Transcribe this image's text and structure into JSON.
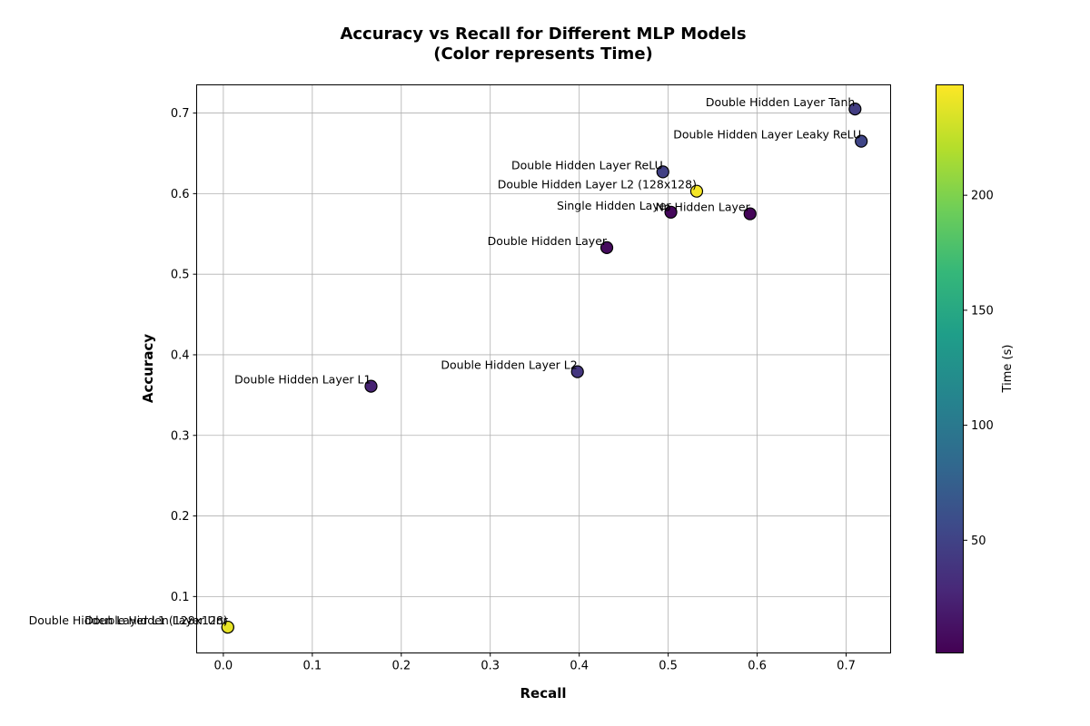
{
  "chart_data": {
    "type": "scatter",
    "title_line1": "Accuracy vs Recall for Different MLP Models",
    "title_line2": "(Color represents Time)",
    "xlabel": "Recall",
    "ylabel": "Accuracy",
    "xlim": [
      -0.03,
      0.75
    ],
    "ylim": [
      0.03,
      0.735
    ],
    "xticks": [
      "0.0",
      "0.1",
      "0.2",
      "0.3",
      "0.4",
      "0.5",
      "0.6",
      "0.7"
    ],
    "yticks": [
      "0.1",
      "0.2",
      "0.3",
      "0.4",
      "0.5",
      "0.6",
      "0.7"
    ],
    "grid": true,
    "colormap": "viridis",
    "colorbar": {
      "label": "Time (s)",
      "range": [
        1,
        248
      ],
      "ticks": [
        "50",
        "100",
        "150",
        "200"
      ]
    },
    "points": [
      {
        "label": "Double Hidden Layer Tanh",
        "recall": 0.71,
        "accuracy": 0.705,
        "time": 45
      },
      {
        "label": "Double Hidden Layer Leaky ReLU",
        "recall": 0.717,
        "accuracy": 0.665,
        "time": 52
      },
      {
        "label": "Double Hidden Layer ReLU",
        "recall": 0.494,
        "accuracy": 0.627,
        "time": 48
      },
      {
        "label": "Double Hidden Layer L2 (128x128)",
        "recall": 0.532,
        "accuracy": 0.603,
        "time": 245
      },
      {
        "label": "Single Hidden Layer",
        "recall": 0.503,
        "accuracy": 0.577,
        "time": 6
      },
      {
        "label": "No Hidden Layer",
        "recall": 0.592,
        "accuracy": 0.575,
        "time": 4
      },
      {
        "label": "Double Hidden Layer",
        "recall": 0.431,
        "accuracy": 0.533,
        "time": 8
      },
      {
        "label": "Double Hidden Layer L2",
        "recall": 0.398,
        "accuracy": 0.379,
        "time": 40
      },
      {
        "label": "Double Hidden Layer L1",
        "recall": 0.166,
        "accuracy": 0.361,
        "time": 25
      },
      {
        "label": "Double Hidden Layer L1 (128x128)",
        "recall": 0.005,
        "accuracy": 0.062,
        "time": 245
      },
      {
        "label": "Double Hidden Layer Unr",
        "recall": 0.005,
        "accuracy": 0.062,
        "time": 240
      }
    ]
  }
}
